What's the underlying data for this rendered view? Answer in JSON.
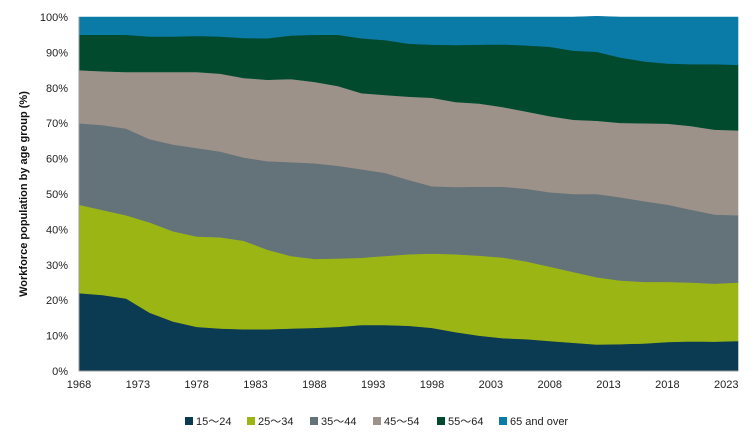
{
  "chart_data": {
    "type": "area",
    "stacked": true,
    "stacked_to_100": true,
    "title": "",
    "xlabel": "",
    "ylabel": "Workforce population by age group (%)",
    "xlim": [
      1968,
      2024
    ],
    "ylim": [
      0,
      100
    ],
    "x_ticks": [
      "1968",
      "1973",
      "1978",
      "1983",
      "1988",
      "1993",
      "1998",
      "2003",
      "2008",
      "2013",
      "2018",
      "2023"
    ],
    "y_ticks": [
      "0%",
      "10%",
      "20%",
      "30%",
      "40%",
      "50%",
      "60%",
      "70%",
      "80%",
      "90%",
      "100%"
    ],
    "legend_position": "bottom",
    "x": [
      1968,
      1970,
      1972,
      1974,
      1976,
      1978,
      1980,
      1982,
      1984,
      1986,
      1988,
      1990,
      1992,
      1994,
      1996,
      1998,
      2000,
      2002,
      2004,
      2006,
      2008,
      2010,
      2012,
      2014,
      2016,
      2018,
      2020,
      2022,
      2024
    ],
    "series": [
      {
        "name": "15〜24",
        "color": "#0b3a53",
        "values": [
          22,
          21.5,
          20.5,
          16.5,
          14,
          12.5,
          12,
          11.8,
          11.8,
          12,
          12.2,
          12.5,
          13,
          13,
          12.8,
          12.2,
          11,
          10,
          9.3,
          9,
          8.5,
          8,
          7.5,
          7.6,
          7.8,
          8.2,
          8.4,
          8.3,
          8.5
        ]
      },
      {
        "name": "25〜34",
        "color": "#9bb514",
        "values": [
          25,
          24,
          23.5,
          25.5,
          25.5,
          25.5,
          25.8,
          25,
          22.5,
          20.5,
          19.5,
          19.3,
          19,
          19.5,
          20.2,
          21,
          22,
          22.6,
          22.8,
          22,
          21,
          20,
          19,
          18,
          17.4,
          17,
          16.6,
          16.4,
          16.5
        ]
      },
      {
        "name": "35〜44",
        "color": "#64737a",
        "values": [
          23,
          24,
          24.5,
          23.5,
          24.5,
          25,
          24.2,
          23.5,
          25,
          26.5,
          27,
          26.2,
          25,
          23.5,
          21,
          19,
          19,
          19.5,
          20,
          20.5,
          21,
          22,
          23.5,
          23.5,
          22.8,
          21.8,
          20.6,
          19.5,
          19
        ]
      },
      {
        "name": "45〜54",
        "color": "#9c928a",
        "values": [
          15,
          15.2,
          16,
          19,
          20.5,
          21.5,
          22,
          22.5,
          23,
          23.5,
          23,
          22.5,
          21.5,
          22,
          23.5,
          25,
          24,
          23.5,
          22.5,
          21.8,
          21.5,
          21,
          20.7,
          21,
          22,
          22.9,
          23.6,
          24,
          24
        ]
      },
      {
        "name": "55〜64",
        "color": "#024a2e",
        "values": [
          10,
          10.3,
          10.5,
          10,
          10,
          10.2,
          10.5,
          11.3,
          11.7,
          12.3,
          13.3,
          14.5,
          15.5,
          15.5,
          15,
          15,
          16.1,
          16.6,
          17.7,
          18.7,
          19.6,
          19.5,
          19.5,
          18.5,
          17.5,
          17,
          17.5,
          18.5,
          18.5
        ]
      },
      {
        "name": "65 and over",
        "color": "#0a7aa7",
        "values": [
          5,
          5,
          5,
          5.5,
          5.5,
          5.3,
          5.5,
          5.9,
          6,
          5.2,
          5,
          5,
          6,
          6.5,
          7.5,
          7.8,
          7.9,
          7.8,
          7.7,
          8,
          8.4,
          9.5,
          10,
          11.4,
          12.5,
          13.1,
          13.3,
          13.3,
          13.5
        ]
      }
    ]
  }
}
